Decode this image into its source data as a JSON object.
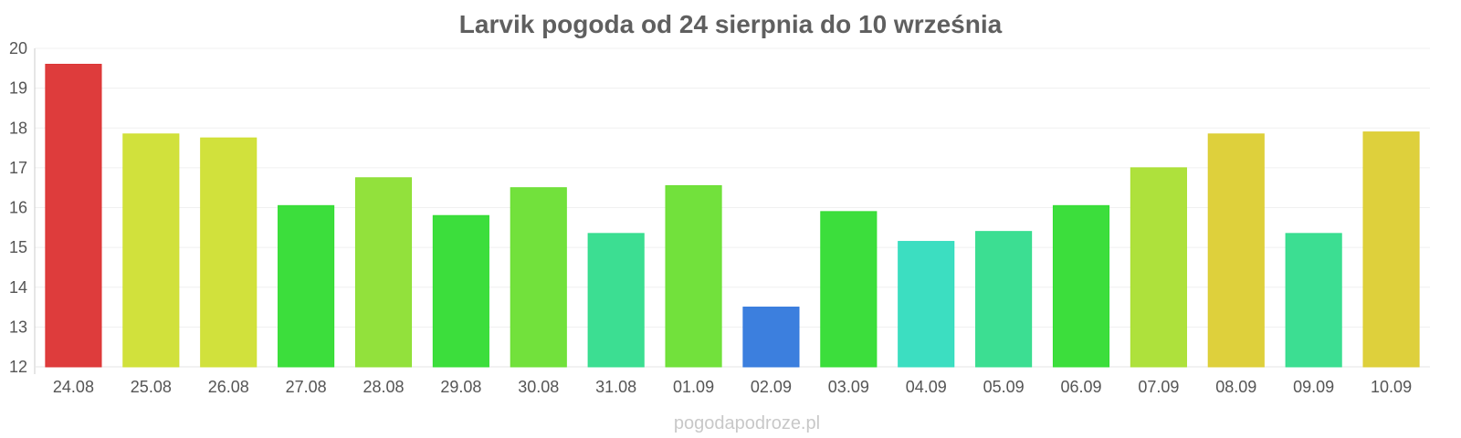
{
  "chart_data": {
    "type": "bar",
    "title": "Larvik pogoda od 24 sierpnia do 10 września",
    "xlabel": "",
    "ylabel": "",
    "ylim": [
      12,
      20
    ],
    "yticks": [
      12,
      13,
      14,
      15,
      16,
      17,
      18,
      19,
      20
    ],
    "grid": true,
    "legend": "none",
    "categories": [
      "24.08",
      "25.08",
      "26.08",
      "27.08",
      "28.08",
      "29.08",
      "30.08",
      "31.08",
      "01.09",
      "02.09",
      "03.09",
      "04.09",
      "05.09",
      "06.09",
      "07.09",
      "08.09",
      "09.09",
      "10.09"
    ],
    "values": [
      19.6,
      17.85,
      17.75,
      16.05,
      16.75,
      15.8,
      16.5,
      15.35,
      16.55,
      13.5,
      15.9,
      15.15,
      15.4,
      16.05,
      17.0,
      17.85,
      15.35,
      17.9
    ],
    "colors": [
      "#dc3232",
      "#cfdf32",
      "#cfdf32",
      "#32dc32",
      "#8cdf32",
      "#32dc32",
      "#6adf32",
      "#32dc8c",
      "#6adf32",
      "#3278dc",
      "#32dc32",
      "#32dcbe",
      "#32dc8c",
      "#32dc32",
      "#aadf32",
      "#dccd32",
      "#32dc8c",
      "#dccd32"
    ]
  },
  "watermark": "pogodapodroze.pl"
}
